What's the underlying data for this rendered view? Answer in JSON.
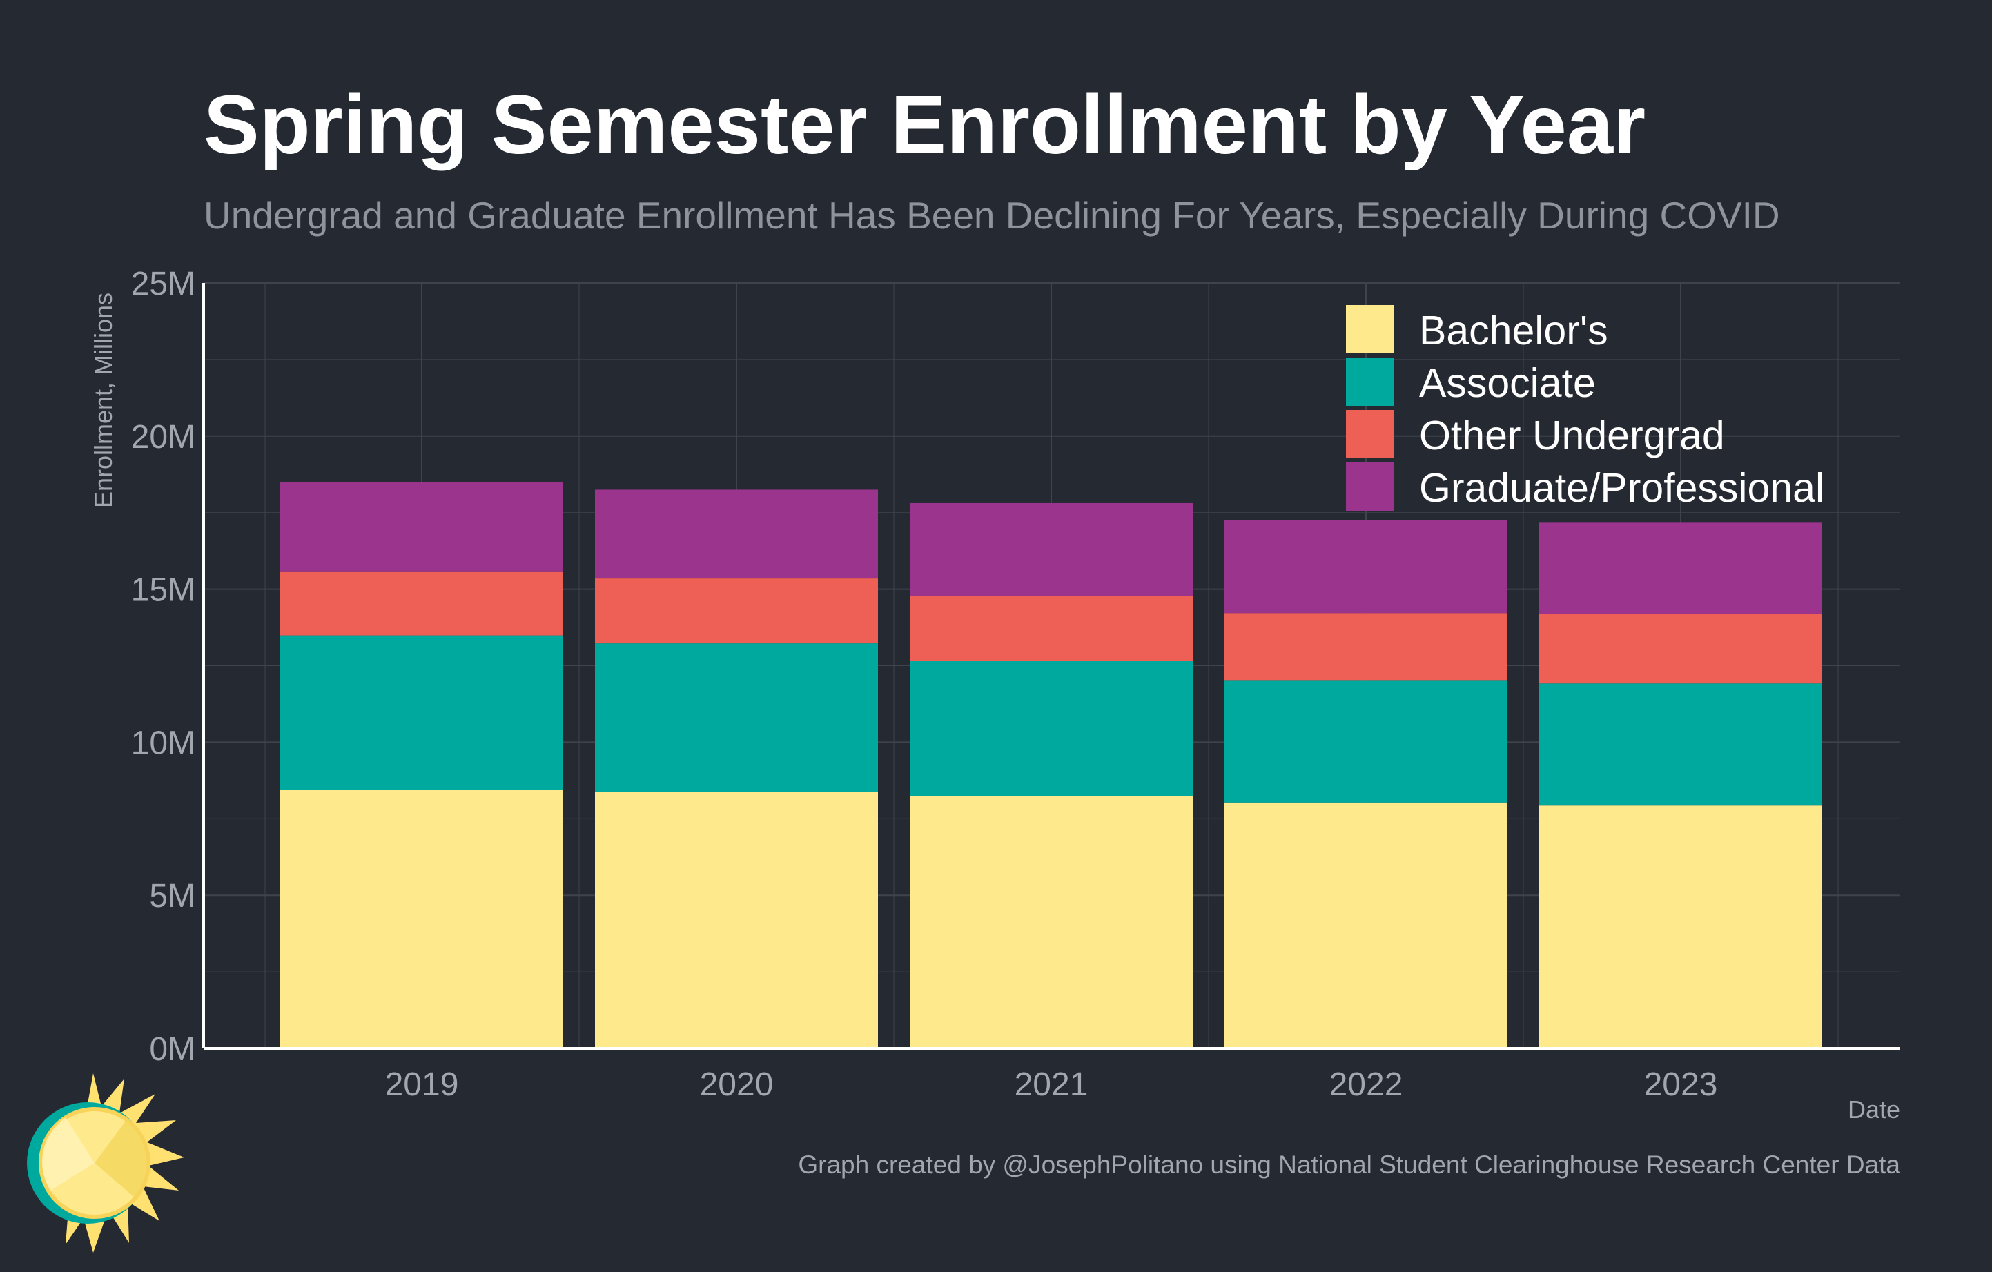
{
  "header": {
    "title": "Spring Semester Enrollment by Year",
    "subtitle": "Undergrad and Graduate Enrollment Has Been Declining For Years, Especially During COVID"
  },
  "footer": {
    "caption": "Graph created by @JosephPolitano using National Student Clearinghouse Research Center Data"
  },
  "colors": {
    "background": "#252932",
    "grid": "#3e434c",
    "axis": "#ffffff"
  },
  "chart_data": {
    "type": "bar",
    "stacked": true,
    "title": "Spring Semester Enrollment by Year",
    "subtitle": "Undergrad and Graduate Enrollment Has Been Declining For Years, Especially During COVID",
    "xlabel": "Date",
    "ylabel": "Enrollment, Millions",
    "categories": [
      "2019",
      "2020",
      "2021",
      "2022",
      "2023"
    ],
    "ylim": [
      0,
      25
    ],
    "yticks": [
      0,
      5,
      10,
      15,
      20,
      25
    ],
    "ytick_labels": [
      "0M",
      "5M",
      "10M",
      "15M",
      "20M",
      "25M"
    ],
    "grid": true,
    "legend_position": "top-right",
    "series": [
      {
        "name": "Bachelor's",
        "color": "#ffe98d",
        "values": [
          8.45,
          8.38,
          8.23,
          8.03,
          7.93
        ]
      },
      {
        "name": "Associate",
        "color": "#00a99d",
        "values": [
          5.04,
          4.85,
          4.42,
          4.0,
          3.99
        ]
      },
      {
        "name": "Other Undergrad",
        "color": "#ee5f55",
        "values": [
          2.07,
          2.12,
          2.13,
          2.19,
          2.27
        ]
      },
      {
        "name": "Graduate/Professional",
        "color": "#9b348c",
        "values": [
          2.94,
          2.9,
          3.03,
          3.03,
          2.98
        ]
      }
    ]
  }
}
